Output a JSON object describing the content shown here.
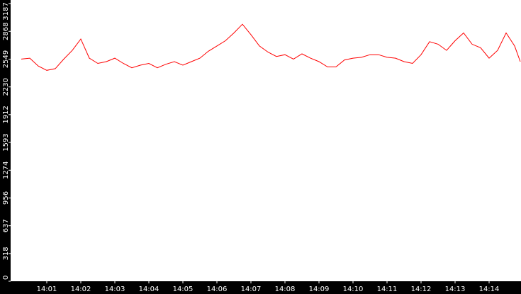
{
  "chart_data": {
    "type": "line",
    "title": "",
    "xlabel": "",
    "ylabel": "",
    "ylim": [
      0,
      3187
    ],
    "yticks": [
      0,
      318,
      637,
      956,
      1274,
      1593,
      1912,
      2230,
      2549,
      2868,
      3187
    ],
    "xticks": [
      "14:01",
      "14:02",
      "14:03",
      "14:04",
      "14:05",
      "14:06",
      "14:07",
      "14:08",
      "14:09",
      "14:10",
      "14:11",
      "14:12",
      "14:13",
      "14:14"
    ],
    "x_range": [
      "14:00:15",
      "14:14:55"
    ],
    "grid": false,
    "colors": {
      "series": "#ff0000",
      "axis_bg": "#000000",
      "axis_text": "#ffffff",
      "plot_bg": "#ffffff"
    },
    "series": [
      {
        "name": "",
        "color": "#ff0000",
        "x": [
          "14:00:15",
          "14:00:30",
          "14:00:45",
          "14:01:00",
          "14:01:15",
          "14:01:30",
          "14:01:45",
          "14:02:00",
          "14:02:15",
          "14:02:30",
          "14:02:45",
          "14:03:00",
          "14:03:15",
          "14:03:30",
          "14:03:45",
          "14:04:00",
          "14:04:15",
          "14:04:30",
          "14:04:45",
          "14:05:00",
          "14:05:15",
          "14:05:30",
          "14:05:45",
          "14:06:00",
          "14:06:15",
          "14:06:30",
          "14:06:45",
          "14:07:00",
          "14:07:15",
          "14:07:30",
          "14:07:45",
          "14:08:00",
          "14:08:15",
          "14:08:30",
          "14:08:45",
          "14:09:00",
          "14:09:15",
          "14:09:30",
          "14:09:45",
          "14:10:00",
          "14:10:15",
          "14:10:30",
          "14:10:45",
          "14:11:00",
          "14:11:15",
          "14:11:30",
          "14:11:45",
          "14:12:00",
          "14:12:15",
          "14:12:30",
          "14:12:45",
          "14:13:00",
          "14:13:15",
          "14:13:30",
          "14:13:45",
          "14:14:00",
          "14:14:15",
          "14:14:30",
          "14:14:45",
          "14:14:55"
        ],
        "values": [
          2550,
          2560,
          2470,
          2420,
          2440,
          2550,
          2650,
          2780,
          2560,
          2500,
          2520,
          2560,
          2500,
          2450,
          2480,
          2500,
          2450,
          2490,
          2520,
          2480,
          2520,
          2560,
          2640,
          2700,
          2760,
          2850,
          2950,
          2830,
          2700,
          2630,
          2580,
          2600,
          2550,
          2610,
          2560,
          2520,
          2460,
          2460,
          2540,
          2560,
          2570,
          2600,
          2600,
          2570,
          2560,
          2520,
          2500,
          2600,
          2750,
          2720,
          2650,
          2760,
          2850,
          2720,
          2680,
          2560,
          2650,
          2850,
          2700,
          2520
        ]
      }
    ]
  }
}
